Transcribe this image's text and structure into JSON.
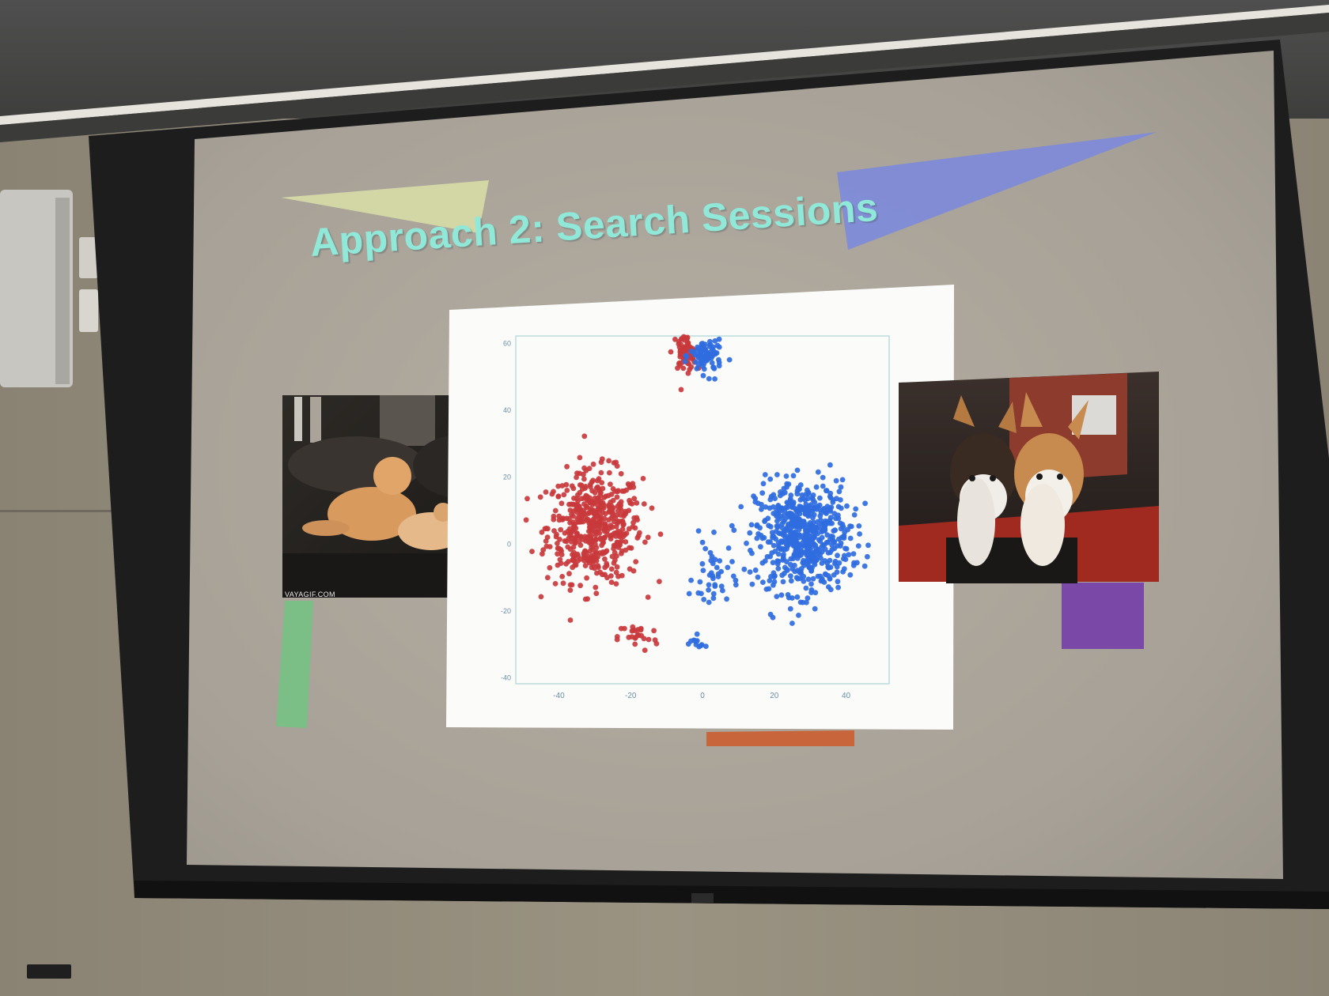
{
  "slide": {
    "title": "Approach 2: Search Sessions",
    "title_color": "#8fe8d8"
  },
  "cat_image": {
    "caption": "VAYAGIF.COM",
    "subject": "two orange cats on a leather couch"
  },
  "dog_image": {
    "subject": "two corgi puppies in front of a brick wall"
  },
  "chart_data": {
    "type": "scatter",
    "title": "",
    "xlabel": "",
    "ylabel": "",
    "xlim": [
      -52,
      52
    ],
    "ylim": [
      -42,
      62
    ],
    "x_ticks": [
      "-40",
      "-20",
      "0",
      "20",
      "40"
    ],
    "y_ticks": [
      "60",
      "40",
      "20",
      "0",
      "-20",
      "-40"
    ],
    "grid": false,
    "series": [
      {
        "color": "#c9393c",
        "clusters": [
          {
            "center": [
              -30,
              5
            ],
            "spread": [
              12,
              15
            ],
            "approx_points": 520
          },
          {
            "center": [
              -5,
              57
            ],
            "spread": [
              3,
              5
            ],
            "approx_points": 70
          },
          {
            "center": [
              -18,
              -28
            ],
            "spread": [
              5,
              4
            ],
            "approx_points": 25
          }
        ]
      },
      {
        "color": "#2f6de0",
        "clusters": [
          {
            "center": [
              28,
              2
            ],
            "spread": [
              12,
              15
            ],
            "approx_points": 620
          },
          {
            "center": [
              1,
              56
            ],
            "spread": [
              4,
              5
            ],
            "approx_points": 90
          },
          {
            "center": [
              -2,
              -30
            ],
            "spread": [
              3,
              2
            ],
            "approx_points": 12
          },
          {
            "center": [
              3,
              -10
            ],
            "spread": [
              5,
              10
            ],
            "approx_points": 40
          }
        ]
      }
    ]
  }
}
